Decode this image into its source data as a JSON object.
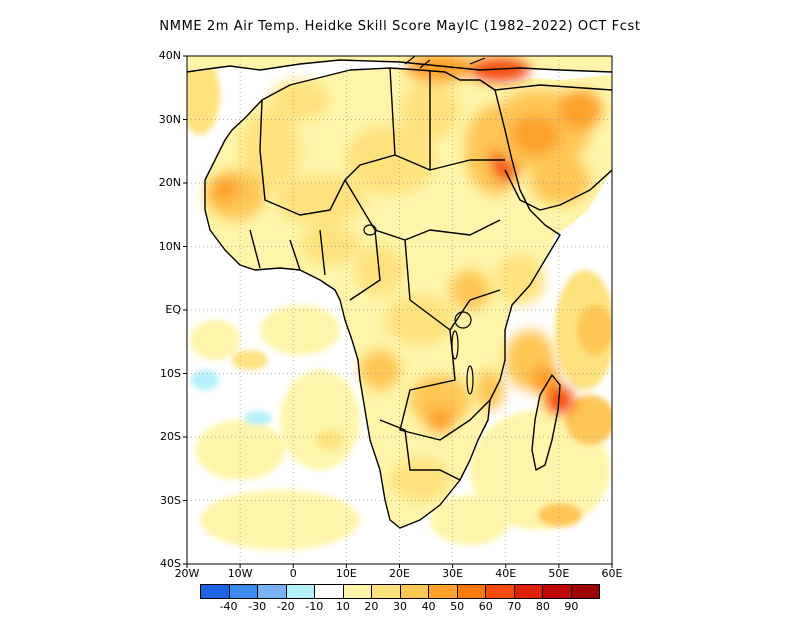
{
  "title": "NMME 2m Air Temp. Heidke Skill Score MayIC (1982–2022) OCT Fcst",
  "axes": {
    "y_ticks": [
      "40N",
      "30N",
      "20N",
      "10N",
      "EQ",
      "10S",
      "20S",
      "30S",
      "40S"
    ],
    "x_ticks": [
      "20W",
      "10W",
      "0",
      "10E",
      "20E",
      "30E",
      "40E",
      "50E",
      "60E"
    ]
  },
  "colorbar": {
    "colors": [
      "#1e64e6",
      "#3c8cf0",
      "#78b4f5",
      "#b4f0fa",
      "#ffffff",
      "#fff5aa",
      "#fee27e",
      "#fec654",
      "#fea12a",
      "#fd7a10",
      "#f64b0a",
      "#e0210a",
      "#c00808",
      "#9c0404"
    ],
    "labels": [
      "-40",
      "-30",
      "-20",
      "-10",
      "10",
      "20",
      "30",
      "40",
      "50",
      "60",
      "70",
      "80",
      "90"
    ]
  },
  "map_colors": {
    "ocean": "#ffffff",
    "land_base": "#fff5aa",
    "coast": "#000000",
    "grid": "#999999"
  }
}
